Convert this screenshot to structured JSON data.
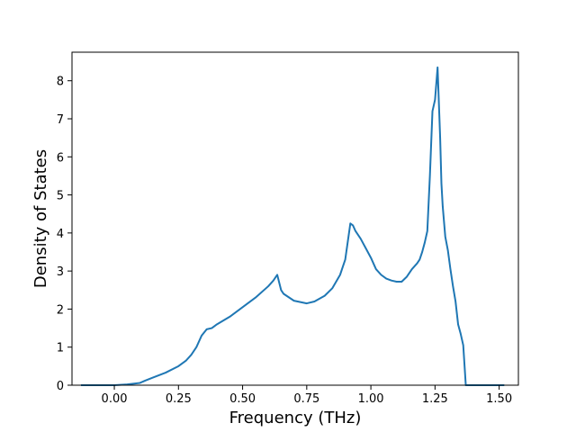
{
  "chart_data": {
    "type": "line",
    "xlabel": "Frequency (THz)",
    "ylabel": "Density of States",
    "xlim": [
      -0.165,
      1.575
    ],
    "ylim": [
      0,
      8.75
    ],
    "xticks": [
      0.0,
      0.25,
      0.5,
      0.75,
      1.0,
      1.25,
      1.5
    ],
    "xtick_labels": [
      "0.00",
      "0.25",
      "0.50",
      "0.75",
      "1.00",
      "1.25",
      "1.50"
    ],
    "yticks": [
      0,
      1,
      2,
      3,
      4,
      5,
      6,
      7,
      8
    ],
    "ytick_labels": [
      "0",
      "1",
      "2",
      "3",
      "4",
      "5",
      "6",
      "7",
      "8"
    ],
    "grid": false,
    "legend": "none",
    "series": [
      {
        "color": "#1f77b4",
        "x": [
          -0.13,
          -0.05,
          0.0,
          0.05,
          0.1,
          0.12,
          0.15,
          0.2,
          0.25,
          0.28,
          0.3,
          0.32,
          0.34,
          0.36,
          0.38,
          0.4,
          0.45,
          0.5,
          0.55,
          0.6,
          0.62,
          0.635,
          0.65,
          0.66,
          0.7,
          0.75,
          0.78,
          0.82,
          0.85,
          0.88,
          0.9,
          0.92,
          0.93,
          0.94,
          0.96,
          0.98,
          1.0,
          1.02,
          1.04,
          1.06,
          1.08,
          1.1,
          1.12,
          1.14,
          1.16,
          1.18,
          1.19,
          1.2,
          1.21,
          1.22,
          1.23,
          1.24,
          1.25,
          1.26,
          1.27,
          1.275,
          1.28,
          1.29,
          1.3,
          1.31,
          1.32,
          1.33,
          1.34,
          1.35,
          1.36,
          1.37,
          1.38,
          1.39,
          1.45,
          1.52
        ],
        "y": [
          0.0,
          0.0,
          0.0,
          0.02,
          0.06,
          0.12,
          0.2,
          0.33,
          0.5,
          0.65,
          0.8,
          1.0,
          1.3,
          1.47,
          1.5,
          1.6,
          1.8,
          2.05,
          2.3,
          2.6,
          2.75,
          2.9,
          2.5,
          2.4,
          2.22,
          2.15,
          2.2,
          2.35,
          2.55,
          2.9,
          3.3,
          4.25,
          4.2,
          4.05,
          3.85,
          3.6,
          3.35,
          3.05,
          2.9,
          2.8,
          2.75,
          2.72,
          2.72,
          2.85,
          3.05,
          3.2,
          3.3,
          3.5,
          3.75,
          4.05,
          5.5,
          7.2,
          7.5,
          8.35,
          6.5,
          5.3,
          4.7,
          3.9,
          3.55,
          3.05,
          2.6,
          2.2,
          1.6,
          1.35,
          1.05,
          0.0,
          0.0,
          0.0,
          0.0,
          0.0
        ]
      }
    ]
  }
}
